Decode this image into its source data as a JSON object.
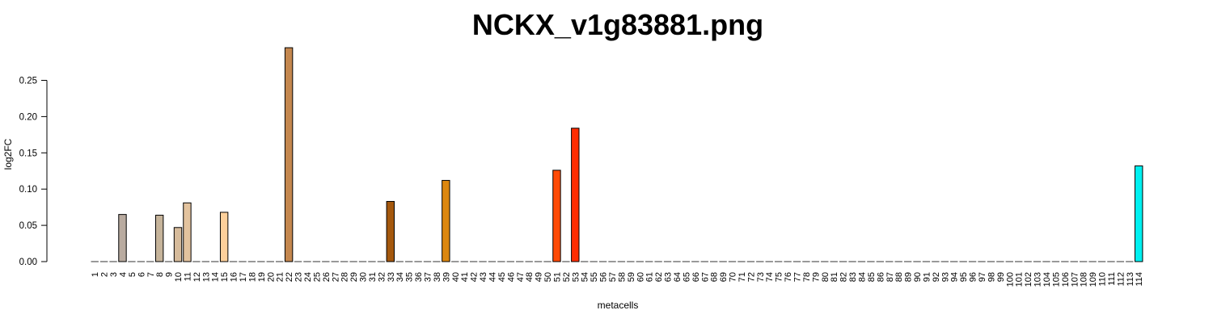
{
  "chart_data": {
    "type": "bar",
    "title": "NCKX_v1g83881.png",
    "xlabel": "metacells",
    "ylabel": "log2FC",
    "ylim": [
      0,
      0.3
    ],
    "yticks": [
      "0.00",
      "0.05",
      "0.10",
      "0.15",
      "0.20",
      "0.25"
    ],
    "grid": false,
    "categories": [
      "1",
      "2",
      "3",
      "4",
      "5",
      "6",
      "7",
      "8",
      "9",
      "10",
      "11",
      "12",
      "13",
      "14",
      "15",
      "16",
      "17",
      "18",
      "19",
      "20",
      "21",
      "22",
      "23",
      "24",
      "25",
      "26",
      "27",
      "28",
      "29",
      "30",
      "31",
      "32",
      "33",
      "34",
      "35",
      "36",
      "37",
      "38",
      "39",
      "40",
      "41",
      "42",
      "43",
      "44",
      "45",
      "46",
      "47",
      "48",
      "49",
      "50",
      "51",
      "52",
      "53",
      "54",
      "55",
      "56",
      "57",
      "58",
      "59",
      "60",
      "61",
      "62",
      "63",
      "64",
      "65",
      "66",
      "67",
      "68",
      "69",
      "70",
      "71",
      "72",
      "73",
      "74",
      "75",
      "76",
      "77",
      "78",
      "79",
      "80",
      "81",
      "82",
      "83",
      "84",
      "85",
      "86",
      "87",
      "88",
      "89",
      "90",
      "91",
      "92",
      "93",
      "94",
      "95",
      "96",
      "97",
      "98",
      "99",
      "100",
      "101",
      "102",
      "103",
      "104",
      "105",
      "106",
      "107",
      "108",
      "109",
      "110",
      "111",
      "112",
      "113",
      "114"
    ],
    "values": [
      0,
      0,
      0,
      0.065,
      0,
      0,
      0,
      0.064,
      0,
      0.047,
      0.081,
      0,
      0,
      0,
      0.068,
      0,
      0,
      0,
      0,
      0,
      0,
      0.295,
      0,
      0,
      0,
      0,
      0,
      0,
      0,
      0,
      0,
      0,
      0.083,
      0,
      0,
      0,
      0,
      0,
      0.112,
      0,
      0,
      0,
      0,
      0,
      0,
      0,
      0,
      0,
      0,
      0,
      0.126,
      0,
      0.184,
      0,
      0,
      0,
      0,
      0,
      0,
      0,
      0,
      0,
      0,
      0,
      0,
      0,
      0,
      0,
      0,
      0,
      0,
      0,
      0,
      0,
      0,
      0,
      0,
      0,
      0,
      0,
      0,
      0,
      0,
      0,
      0,
      0,
      0,
      0,
      0,
      0,
      0,
      0,
      0,
      0,
      0,
      0,
      0,
      0,
      0,
      0,
      0,
      0,
      0,
      0,
      0,
      0,
      0,
      0,
      0,
      0,
      0,
      0,
      0,
      0.132
    ],
    "bar_colors": {
      "4": "#b9aba0",
      "8": "#c6b49b",
      "10": "#d6bb9b",
      "11": "#e3c39e",
      "15": "#fdd09b",
      "22": "#c4874f",
      "33": "#a4580e",
      "39": "#dc870f",
      "51": "#ff4a05",
      "53": "#ff2d00",
      "114": "#00f0f0"
    },
    "default_bar_color": "#dddddd"
  }
}
